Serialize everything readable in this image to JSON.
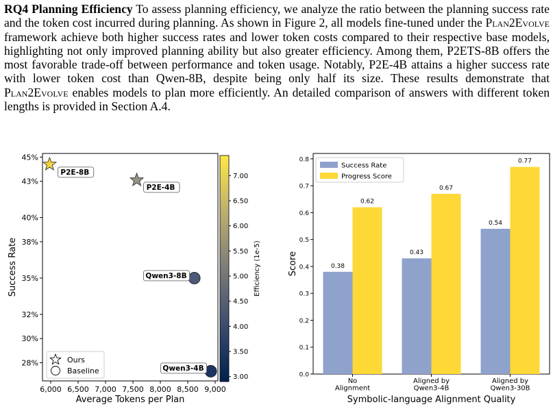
{
  "paragraph": {
    "heading": "RQ4 Planning Efficiency",
    "seg1": " To assess planning efficiency, we analyze the ratio between the planning success rate and the token cost incurred during planning. As shown in Figure 2, all models fine-tuned under the ",
    "framework": "Plan2Evolve",
    "seg2": " framework achieve both higher success rates and lower token costs compared to their respective base models, highlighting not only improved planning ability but also greater efficiency. Among them, P2ETS-8B offers the most favorable trade-off between performance and token usage. Notably, P2E-4B attains a higher success rate with lower token cost than Qwen-8B, despite being only half its size. These results demonstrate that ",
    "seg3": " enables models to plan more efficiently. An detailed comparison of answers with different token lengths is provided in Section A.4."
  },
  "colors": {
    "bar_success": "#8fa2cc",
    "bar_progress": "#fdd836",
    "axis": "#000000"
  },
  "chart_data": [
    {
      "type": "scatter",
      "xlabel": "Average Tokens per Plan",
      "ylabel": "Success Rate",
      "xlim": [
        5850,
        9050
      ],
      "ylim": [
        26.5,
        45.3
      ],
      "xticks": [
        6000,
        6500,
        7000,
        7500,
        8000,
        8500,
        9000
      ],
      "xtick_labels": [
        "6,000",
        "6,500",
        "7,000",
        "7,500",
        "8,000",
        "8,500",
        "9,000"
      ],
      "yticks": [
        28,
        30,
        32,
        35,
        38,
        40,
        43,
        45
      ],
      "ytick_labels": [
        "28%",
        "30%",
        "32%",
        "35%",
        "38%",
        "40%",
        "43%",
        "45%"
      ],
      "colorbar": {
        "label": "Efficiency (1e-5)",
        "range": [
          2.9,
          7.4
        ],
        "ticks": [
          3.0,
          3.5,
          4.0,
          4.5,
          5.0,
          5.5,
          6.0,
          6.5,
          7.0
        ],
        "tick_labels": [
          "3.00",
          "3.50",
          "4.00",
          "4.50",
          "5.00",
          "5.50",
          "6.00",
          "6.50",
          "7.00"
        ]
      },
      "points": [
        {
          "label": "P2E-8B",
          "x": 5980,
          "y": 44.4,
          "marker": "star",
          "efficiency": 7.4,
          "color": "#f2d340"
        },
        {
          "label": "P2E-4B",
          "x": 7570,
          "y": 43.1,
          "marker": "star",
          "efficiency": 5.7,
          "color": "#979584"
        },
        {
          "label": "Qwen3-8B",
          "x": 8620,
          "y": 35.0,
          "marker": "circle",
          "efficiency": 4.05,
          "color": "#4a5a78"
        },
        {
          "label": "Qwen3-4B",
          "x": 8920,
          "y": 27.3,
          "marker": "circle",
          "efficiency": 3.05,
          "color": "#1d3563"
        }
      ],
      "legend": {
        "placement": "lower-left",
        "entries": [
          {
            "name": "Ours",
            "marker": "star"
          },
          {
            "name": "Baseline",
            "marker": "circle"
          }
        ]
      }
    },
    {
      "type": "bar",
      "xlabel": "Symbolic-language Alignment Quality",
      "ylabel": "Score",
      "ylim": [
        0,
        0.82
      ],
      "yticks": [
        0.0,
        0.1,
        0.2,
        0.3,
        0.4,
        0.5,
        0.6,
        0.7,
        0.8
      ],
      "ytick_labels": [
        "0.0",
        "0.1",
        "0.2",
        "0.3",
        "0.4",
        "0.5",
        "0.6",
        "0.7",
        "0.8"
      ],
      "categories": [
        [
          "No",
          "Alignment"
        ],
        [
          "Aligned by",
          "Qwen3-4B"
        ],
        [
          "Aligned by",
          "Qwen3-30B"
        ]
      ],
      "series": [
        {
          "name": "Success Rate",
          "values": [
            0.38,
            0.43,
            0.54
          ],
          "value_labels": [
            "0.38",
            "0.43",
            "0.54"
          ]
        },
        {
          "name": "Progress Score",
          "values": [
            0.62,
            0.67,
            0.77
          ],
          "value_labels": [
            "0.62",
            "0.67",
            "0.77"
          ]
        }
      ],
      "legend": {
        "placement": "top-left"
      }
    }
  ]
}
